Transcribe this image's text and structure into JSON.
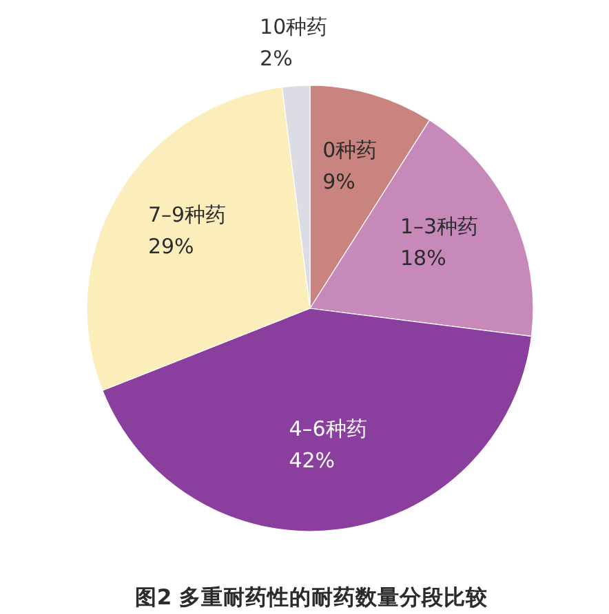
{
  "chart_data": {
    "type": "pie",
    "title": "图2 多重耐药性的耐药数量分段比较",
    "categories": [
      "0种药",
      "1–3种药",
      "4–6种药",
      "7–9种药",
      "10种药"
    ],
    "values": [
      9,
      18,
      42,
      29,
      2
    ],
    "value_labels": [
      "9%",
      "18%",
      "42%",
      "29%",
      "2%"
    ],
    "colors": [
      "#c9847f",
      "#c689ba",
      "#8a3f9e",
      "#fbeebb",
      "#dcdce4"
    ]
  }
}
